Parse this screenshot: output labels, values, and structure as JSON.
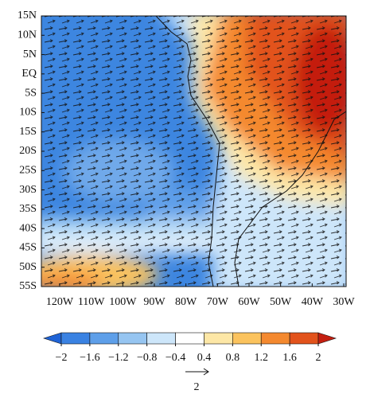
{
  "map": {
    "lat_labels": [
      "15N",
      "10N",
      "5N",
      "EQ",
      "5S",
      "10S",
      "15S",
      "20S",
      "25S",
      "30S",
      "35S",
      "40S",
      "45S",
      "50S",
      "55S"
    ],
    "lon_labels": [
      "120W",
      "110W",
      "100W",
      "90W",
      "80W",
      "70W",
      "60W",
      "50W",
      "40W",
      "30W"
    ]
  },
  "colorbar": {
    "ticks": [
      {
        "value": -2,
        "label": "−2"
      },
      {
        "value": -1.6,
        "label": "−1.6"
      },
      {
        "value": -1.2,
        "label": "−1.2"
      },
      {
        "value": -0.8,
        "label": "−0.8"
      },
      {
        "value": -0.4,
        "label": "−0.4"
      },
      0.4,
      0.8,
      1.2,
      1.6,
      2
    ],
    "colors": [
      "#1f63d6",
      "#3a82e2",
      "#5e9fe9",
      "#96c5f1",
      "#cde6fa",
      "#ffffff",
      "#fde7a6",
      "#fbc35e",
      "#f4892f",
      "#e2531c",
      "#c41f10"
    ]
  },
  "vector_reference": {
    "value": 2
  }
}
